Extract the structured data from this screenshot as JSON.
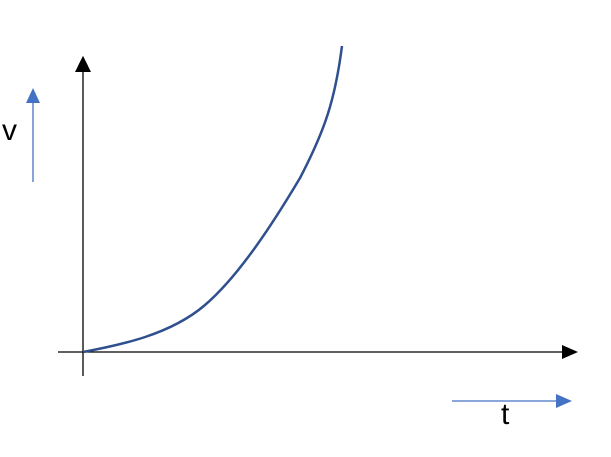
{
  "labels": {
    "y_axis": "v",
    "x_axis": "t"
  },
  "colors": {
    "curve": "#2f4f8f",
    "direction_arrows": "#4472c4",
    "axes": "#000000"
  }
}
